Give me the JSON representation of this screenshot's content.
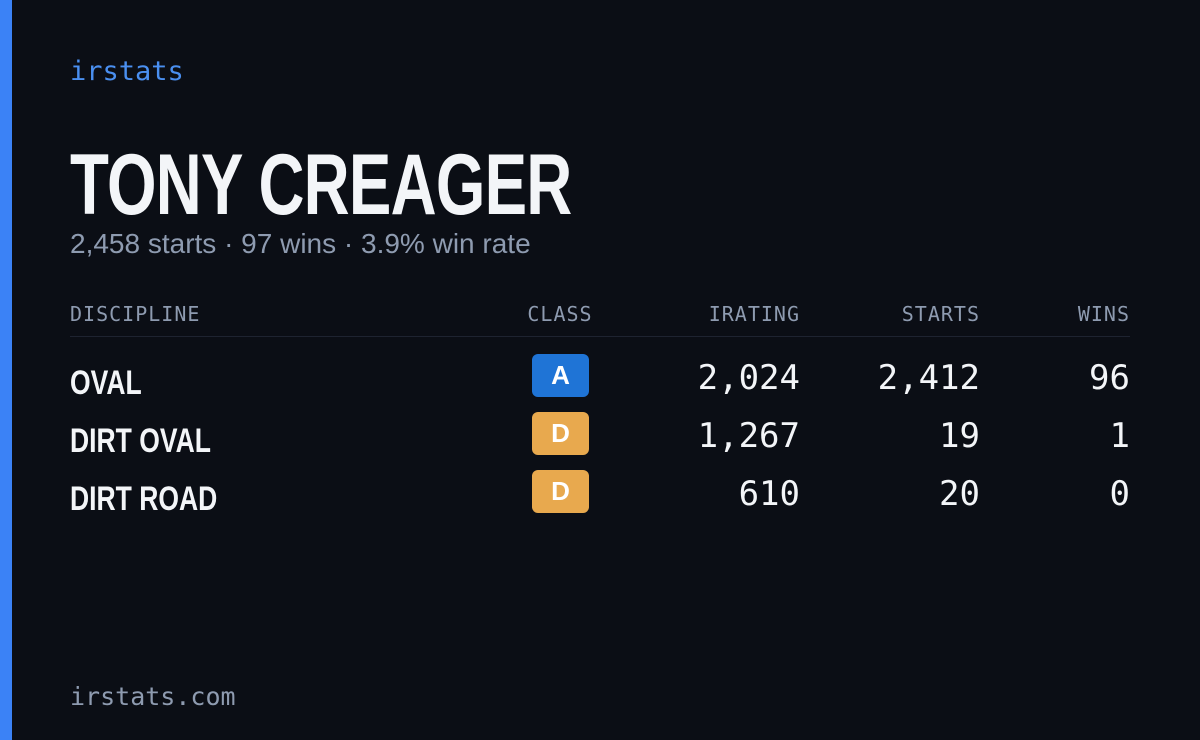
{
  "brand": "irstats",
  "driver": {
    "name": "TONY CREAGER",
    "summary": "2,458 starts · 97 wins · 3.9% win rate"
  },
  "table": {
    "headers": [
      "DISCIPLINE",
      "CLASS",
      "IRATING",
      "STARTS",
      "WINS"
    ],
    "rows": [
      [
        "OVAL",
        "A",
        "2,024",
        "2,412",
        "96"
      ],
      [
        "DIRT OVAL",
        "D",
        "1,267",
        "19",
        "1"
      ],
      [
        "DIRT ROAD",
        "D",
        "610",
        "20",
        "0"
      ]
    ]
  },
  "footer": "irstats.com"
}
